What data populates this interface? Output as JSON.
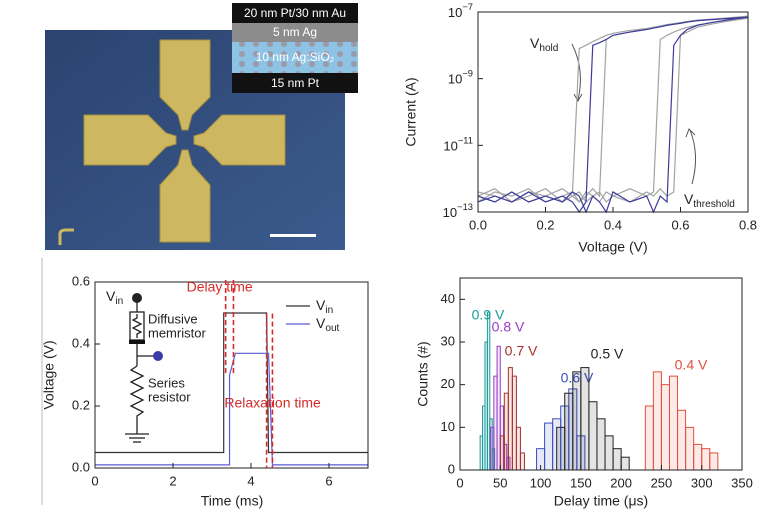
{
  "micrograph": {
    "layers": [
      "20 nm Pt/30 nm Au",
      "5 nm Ag",
      "10 nm Ag:SiO₂",
      "15 nm Pt"
    ]
  },
  "chart_data": [
    {
      "type": "line",
      "ylog": true,
      "xlabel": "Voltage (V)",
      "ylabel": "Current (A)",
      "xlim": [
        0,
        0.8
      ],
      "xticks": [
        {
          "value": 0,
          "label": "0.0"
        },
        0.2,
        0.4,
        0.6,
        0.8
      ],
      "ylim": [
        1e-13,
        1e-07
      ],
      "yticks": [
        {
          "value": 1e-13,
          "label": "10−13"
        },
        {
          "value": 1e-11,
          "label": "10−11"
        },
        {
          "value": 1e-09,
          "label": "10−9"
        },
        {
          "value": 1e-07,
          "label": "10−7"
        }
      ],
      "annotations": [
        "Vhold",
        "Vthreshold"
      ],
      "x": [
        0,
        0.05,
        0.1,
        0.15,
        0.2,
        0.25,
        0.28,
        0.3,
        0.32,
        0.34,
        0.36,
        0.38,
        0.4,
        0.45,
        0.5,
        0.52,
        0.54,
        0.56,
        0.58,
        0.6,
        0.62,
        0.65,
        0.7,
        0.75,
        0.8
      ],
      "series": [
        {
          "color": "#a3a3a3",
          "values": [
            3e-13,
            2e-13,
            4e-13,
            2e-13,
            3e-13,
            5e-13,
            3e-13,
            4e-13,
            2e-13,
            3e-13,
            4e-13,
            2e-13,
            3e-13,
            5e-13,
            3e-13,
            4e-13,
            1.5e-08,
            2e-08,
            2.5e-08,
            3e-08,
            3.5e-08,
            4e-08,
            5e-08,
            6e-08,
            7e-08
          ]
        },
        {
          "color": "#a3a3a3",
          "values": [
            2e-13,
            4e-13,
            3e-13,
            5e-13,
            2e-13,
            3e-13,
            4e-13,
            2e-13,
            3e-13,
            5e-13,
            3e-13,
            1.5e-08,
            2e-08,
            2.5e-08,
            3e-08,
            3.3e-08,
            3.6e-08,
            4e-08,
            4.3e-08,
            4.6e-08,
            5e-08,
            5.5e-08,
            6e-08,
            6.5e-08,
            7.5e-08
          ]
        },
        {
          "color": "#a3a3a3",
          "values": [
            4e-13,
            3e-13,
            2e-13,
            3e-13,
            5e-13,
            2e-13,
            3e-13,
            2e-13,
            4e-13,
            3e-13,
            2e-13,
            4e-13,
            3e-13,
            2e-13,
            4e-13,
            3e-13,
            5e-13,
            3e-13,
            4e-13,
            2e-08,
            2.5e-08,
            3.5e-08,
            4.5e-08,
            5.5e-08,
            6.5e-08
          ]
        },
        {
          "color": "#a3a3a3",
          "values": [
            3e-13,
            5e-13,
            2e-13,
            4e-13,
            3e-13,
            2e-13,
            4e-13,
            8e-09,
            1e-08,
            1.3e-08,
            1.6e-08,
            2e-08,
            2.3e-08,
            2.8e-08,
            3.2e-08,
            3.5e-08,
            3.8e-08,
            4.2e-08,
            4.5e-08,
            4.8e-08,
            5.2e-08,
            5.7e-08,
            6.2e-08,
            6.8e-08,
            7.5e-08
          ]
        },
        {
          "color": "#3b3b9c",
          "values": [
            3e-13,
            2e-13,
            4e-13,
            2e-13,
            3e-13,
            2e-13,
            4e-13,
            3e-13,
            1e-13,
            3e-13,
            2e-13,
            1e-13,
            4e-13,
            2e-13,
            3e-13,
            1e-13,
            3e-13,
            2e-13,
            1e-08,
            2e-08,
            3e-08,
            4e-08,
            5e-08,
            6e-08,
            7e-08
          ]
        },
        {
          "color": "#3b3b9c",
          "values": [
            2e-13,
            3e-13,
            2e-13,
            4e-13,
            2e-13,
            3e-13,
            2e-13,
            1e-13,
            2e-13,
            1e-08,
            1.2e-08,
            1.5e-08,
            2e-08,
            2.5e-08,
            3e-08,
            3.3e-08,
            3.6e-08,
            4e-08,
            4.3e-08,
            4.6e-08,
            5e-08,
            5.5e-08,
            6e-08,
            6.5e-08,
            7e-08
          ]
        }
      ]
    },
    {
      "type": "line",
      "xlabel": "Time (ms)",
      "ylabel": "Voltage (V)",
      "xlim": [
        0,
        7
      ],
      "xticks": [
        0,
        2,
        4,
        6
      ],
      "ylim": [
        0,
        0.6
      ],
      "yticks": [
        {
          "value": 0,
          "label": "0.0"
        },
        0.2,
        0.4,
        0.6
      ],
      "x": [
        0,
        3.3,
        3.3,
        3.45,
        3.45,
        3.6,
        4.4,
        4.45,
        4.55,
        7
      ],
      "series": [
        {
          "name": "Vin",
          "color": "#333333",
          "values": [
            0.05,
            0.05,
            0.5,
            0.5,
            0.5,
            0.5,
            0.5,
            0.05,
            0.05,
            0.05
          ]
        },
        {
          "name": "Vout",
          "color": "#5b5bd6",
          "values": [
            0.01,
            0.01,
            0.01,
            0.01,
            0.3,
            0.37,
            0.37,
            0.37,
            0.01,
            0.01
          ]
        }
      ],
      "annotations": [
        {
          "text": "Delay time",
          "x": [
            3.35,
            3.55
          ]
        },
        {
          "text": "Relaxation time",
          "x": [
            4.4,
            4.55
          ]
        }
      ],
      "annotation_color": "#d42a2a",
      "inset": {
        "source": "Vin",
        "memristor": [
          "Diffusive",
          "memristor"
        ],
        "resistor": [
          "Series",
          "resistor"
        ]
      }
    },
    {
      "type": "histogram",
      "xlabel": "Delay time (μs)",
      "ylabel": "Counts (#)",
      "xlim": [
        0,
        350
      ],
      "xticks": [
        0,
        50,
        100,
        150,
        200,
        250,
        300,
        350
      ],
      "ylim": [
        0,
        45
      ],
      "yticks": [
        0,
        10,
        20,
        30,
        40
      ],
      "series": [
        {
          "name": "0.9 V",
          "color": "#1a9a9a",
          "bins": [
            25,
            28,
            31,
            34,
            37,
            40,
            43
          ],
          "values": [
            8,
            15,
            30,
            37,
            12,
            5
          ]
        },
        {
          "name": "0.8 V",
          "color": "#9a3ac8",
          "bins": [
            38,
            42,
            46,
            50,
            54,
            58,
            62
          ],
          "values": [
            10,
            22,
            29,
            15,
            6,
            3
          ]
        },
        {
          "name": "0.7 V",
          "color": "#a8322a",
          "bins": [
            50,
            55,
            60,
            65,
            70,
            75,
            80
          ],
          "values": [
            8,
            18,
            24,
            22,
            10,
            4
          ]
        },
        {
          "name": "0.6 V",
          "color": "#3a4ec0",
          "bins": [
            95,
            105,
            115,
            125,
            135,
            145,
            155
          ],
          "values": [
            5,
            11,
            12,
            15,
            19,
            8
          ]
        },
        {
          "name": "0.5 V",
          "color": "#222222",
          "bins": [
            120,
            130,
            140,
            150,
            160,
            170,
            180,
            190,
            200,
            210
          ],
          "values": [
            10,
            18,
            23,
            24,
            16,
            12,
            8,
            5,
            3
          ]
        },
        {
          "name": "0.4 V",
          "color": "#e0503c",
          "bins": [
            230,
            240,
            250,
            260,
            270,
            280,
            290,
            300,
            310,
            320
          ],
          "values": [
            15,
            23,
            20,
            22,
            14,
            10,
            6,
            5,
            4
          ]
        }
      ]
    }
  ]
}
